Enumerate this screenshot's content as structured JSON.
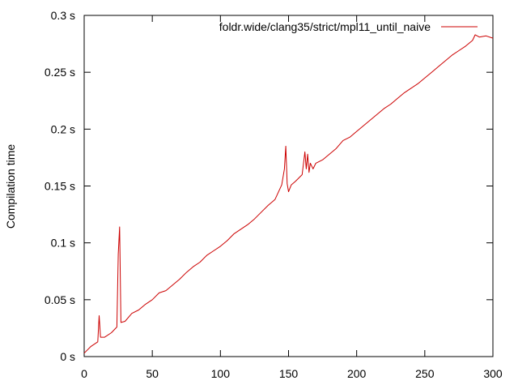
{
  "chart_data": {
    "type": "line",
    "title": "",
    "xlabel": "",
    "ylabel": "Compilation time",
    "xlim": [
      0,
      300
    ],
    "ylim": [
      0,
      0.3
    ],
    "grid": false,
    "legend_placement": "top-right",
    "x_ticks": [
      {
        "value": 0,
        "label": "0"
      },
      {
        "value": 50,
        "label": "50"
      },
      {
        "value": 100,
        "label": "100"
      },
      {
        "value": 150,
        "label": "150"
      },
      {
        "value": 200,
        "label": "200"
      },
      {
        "value": 250,
        "label": "250"
      },
      {
        "value": 300,
        "label": "300"
      }
    ],
    "y_ticks": [
      {
        "value": 0,
        "label": "0 s"
      },
      {
        "value": 0.05,
        "label": "0.05 s"
      },
      {
        "value": 0.1,
        "label": "0.1 s"
      },
      {
        "value": 0.15,
        "label": "0.15 s"
      },
      {
        "value": 0.2,
        "label": "0.2 s"
      },
      {
        "value": 0.25,
        "label": "0.25 s"
      },
      {
        "value": 0.3,
        "label": "0.3 s"
      }
    ],
    "series": [
      {
        "name": "foldr.wide/clang35/strict/mpl11_until_naive",
        "color": "#cc0000",
        "x": [
          0,
          5,
          10,
          11,
          12,
          15,
          20,
          24,
          25,
          26,
          27,
          30,
          35,
          40,
          45,
          50,
          55,
          60,
          65,
          70,
          75,
          80,
          85,
          90,
          95,
          100,
          105,
          110,
          115,
          120,
          125,
          130,
          135,
          140,
          145,
          147,
          148,
          149,
          150,
          152,
          155,
          160,
          162,
          163,
          164,
          165,
          166,
          168,
          170,
          175,
          180,
          185,
          190,
          195,
          200,
          205,
          210,
          215,
          220,
          225,
          230,
          235,
          240,
          245,
          250,
          255,
          260,
          265,
          270,
          275,
          280,
          285,
          287,
          290,
          295,
          300
        ],
        "y": [
          0.003,
          0.009,
          0.013,
          0.036,
          0.017,
          0.017,
          0.021,
          0.026,
          0.09,
          0.114,
          0.03,
          0.031,
          0.038,
          0.041,
          0.046,
          0.05,
          0.056,
          0.058,
          0.063,
          0.068,
          0.074,
          0.079,
          0.083,
          0.089,
          0.093,
          0.097,
          0.102,
          0.108,
          0.112,
          0.116,
          0.121,
          0.127,
          0.133,
          0.138,
          0.151,
          0.165,
          0.185,
          0.152,
          0.145,
          0.151,
          0.154,
          0.16,
          0.18,
          0.165,
          0.178,
          0.162,
          0.17,
          0.165,
          0.17,
          0.173,
          0.178,
          0.183,
          0.19,
          0.193,
          0.198,
          0.203,
          0.208,
          0.213,
          0.218,
          0.222,
          0.227,
          0.232,
          0.236,
          0.24,
          0.245,
          0.25,
          0.255,
          0.26,
          0.265,
          0.269,
          0.273,
          0.278,
          0.283,
          0.281,
          0.282,
          0.28
        ]
      }
    ]
  }
}
